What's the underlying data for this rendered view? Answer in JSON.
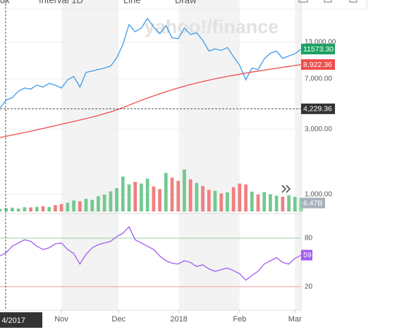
{
  "toolbar": [
    "ux",
    "Interval 1D",
    "Line",
    "Draw"
  ],
  "chart_data": [
    {
      "type": "line",
      "log_scale": true,
      "watermark": "yahoo!/finance",
      "grid": true,
      "xlim": [
        0,
        49
      ],
      "ylim": [
        750,
        23500
      ],
      "yticks": [
        {
          "value": 1000,
          "label": "1,000.00"
        },
        {
          "value": 3000,
          "label": "3,000.00"
        },
        {
          "value": 7000,
          "label": "7,000.00"
        },
        {
          "value": 13000,
          "label": "13,000.00"
        }
      ],
      "series": [
        {
          "color": "#3d9be9",
          "label_color": "#1aa260",
          "last_label": "11573.30",
          "values": [
            4300,
            4900,
            5100,
            5700,
            6000,
            5900,
            6300,
            6100,
            6500,
            6300,
            6000,
            6900,
            7300,
            6100,
            7800,
            8000,
            8200,
            8400,
            8700,
            10000,
            12500,
            17500,
            15500,
            16500,
            19400,
            16800,
            15000,
            17200,
            14000,
            13800,
            16500,
            14800,
            15200,
            13400,
            11200,
            11600,
            11300,
            11900,
            10200,
            8800,
            6900,
            8400,
            8200,
            9800,
            10800,
            11200,
            9900,
            10300,
            10700,
            11573.3
          ]
        },
        {
          "color": "#f04d4d",
          "label_color": "#f04d4d",
          "last_label": "8,922.36",
          "values": [
            2600,
            2660,
            2720,
            2780,
            2840,
            2900,
            2970,
            3040,
            3110,
            3180,
            3260,
            3340,
            3420,
            3500,
            3590,
            3680,
            3780,
            3900,
            4020,
            4160,
            4320,
            4500,
            4690,
            4880,
            5070,
            5260,
            5450,
            5640,
            5830,
            6010,
            6190,
            6370,
            6540,
            6700,
            6860,
            7010,
            7160,
            7300,
            7440,
            7580,
            7720,
            7860,
            7990,
            8120,
            8250,
            8380,
            8510,
            8640,
            8770,
            8922.36
          ]
        }
      ],
      "crosshair": {
        "value": 4229.36,
        "label": "4,229.36",
        "date_label": "4/2017"
      },
      "volume": {
        "type": "bar",
        "ylim": [
          0,
          40
        ],
        "up_color": "#72c98f",
        "down_color": "#f07f7f",
        "label_color": "#a7b1bd",
        "last_label": "6.47B",
        "values": [
          1.2,
          1.5,
          1.8,
          1.4,
          2.0,
          1.9,
          2.2,
          2.5,
          2.1,
          3.0,
          3.5,
          4.1,
          5.2,
          4.8,
          6.0,
          5.5,
          7.2,
          8.0,
          9.5,
          11.0,
          16.5,
          12.8,
          14.0,
          13.2,
          15.5,
          11.8,
          10.6,
          18.2,
          16.0,
          14.5,
          19.8,
          15.2,
          13.5,
          12.0,
          10.2,
          9.8,
          8.5,
          9.0,
          11.5,
          13.2,
          12.8,
          9.4,
          8.0,
          9.2,
          8.1,
          7.5,
          7.0,
          7.6,
          6.9,
          6.47
        ]
      }
    },
    {
      "type": "line",
      "color": "#a25cf0",
      "shade_color": "#f3f3f3",
      "xlim": [
        0,
        49
      ],
      "ylim": [
        -9,
        106
      ],
      "xticks": [
        {
          "value": 10,
          "label": "Nov"
        },
        {
          "value": 19.3,
          "label": "Dec"
        },
        {
          "value": 29.1,
          "label": "2018"
        },
        {
          "value": 39,
          "label": "Feb"
        },
        {
          "value": 48,
          "label": "Mar"
        }
      ],
      "yticks": [
        20,
        80
      ],
      "ytick_colors": [
        "#f2a0a0",
        "#8fd6a5"
      ],
      "values": [
        58,
        62,
        70,
        74,
        78,
        76,
        70,
        66,
        68,
        73,
        74,
        66,
        61,
        48,
        60,
        68,
        72,
        74,
        76,
        82,
        86,
        94,
        78,
        74,
        70,
        66,
        58,
        52,
        49,
        48,
        52,
        50,
        45,
        47,
        42,
        39,
        41,
        43,
        40,
        36,
        28,
        34,
        39,
        48,
        52,
        56,
        50,
        48,
        55,
        59
      ]
    }
  ]
}
